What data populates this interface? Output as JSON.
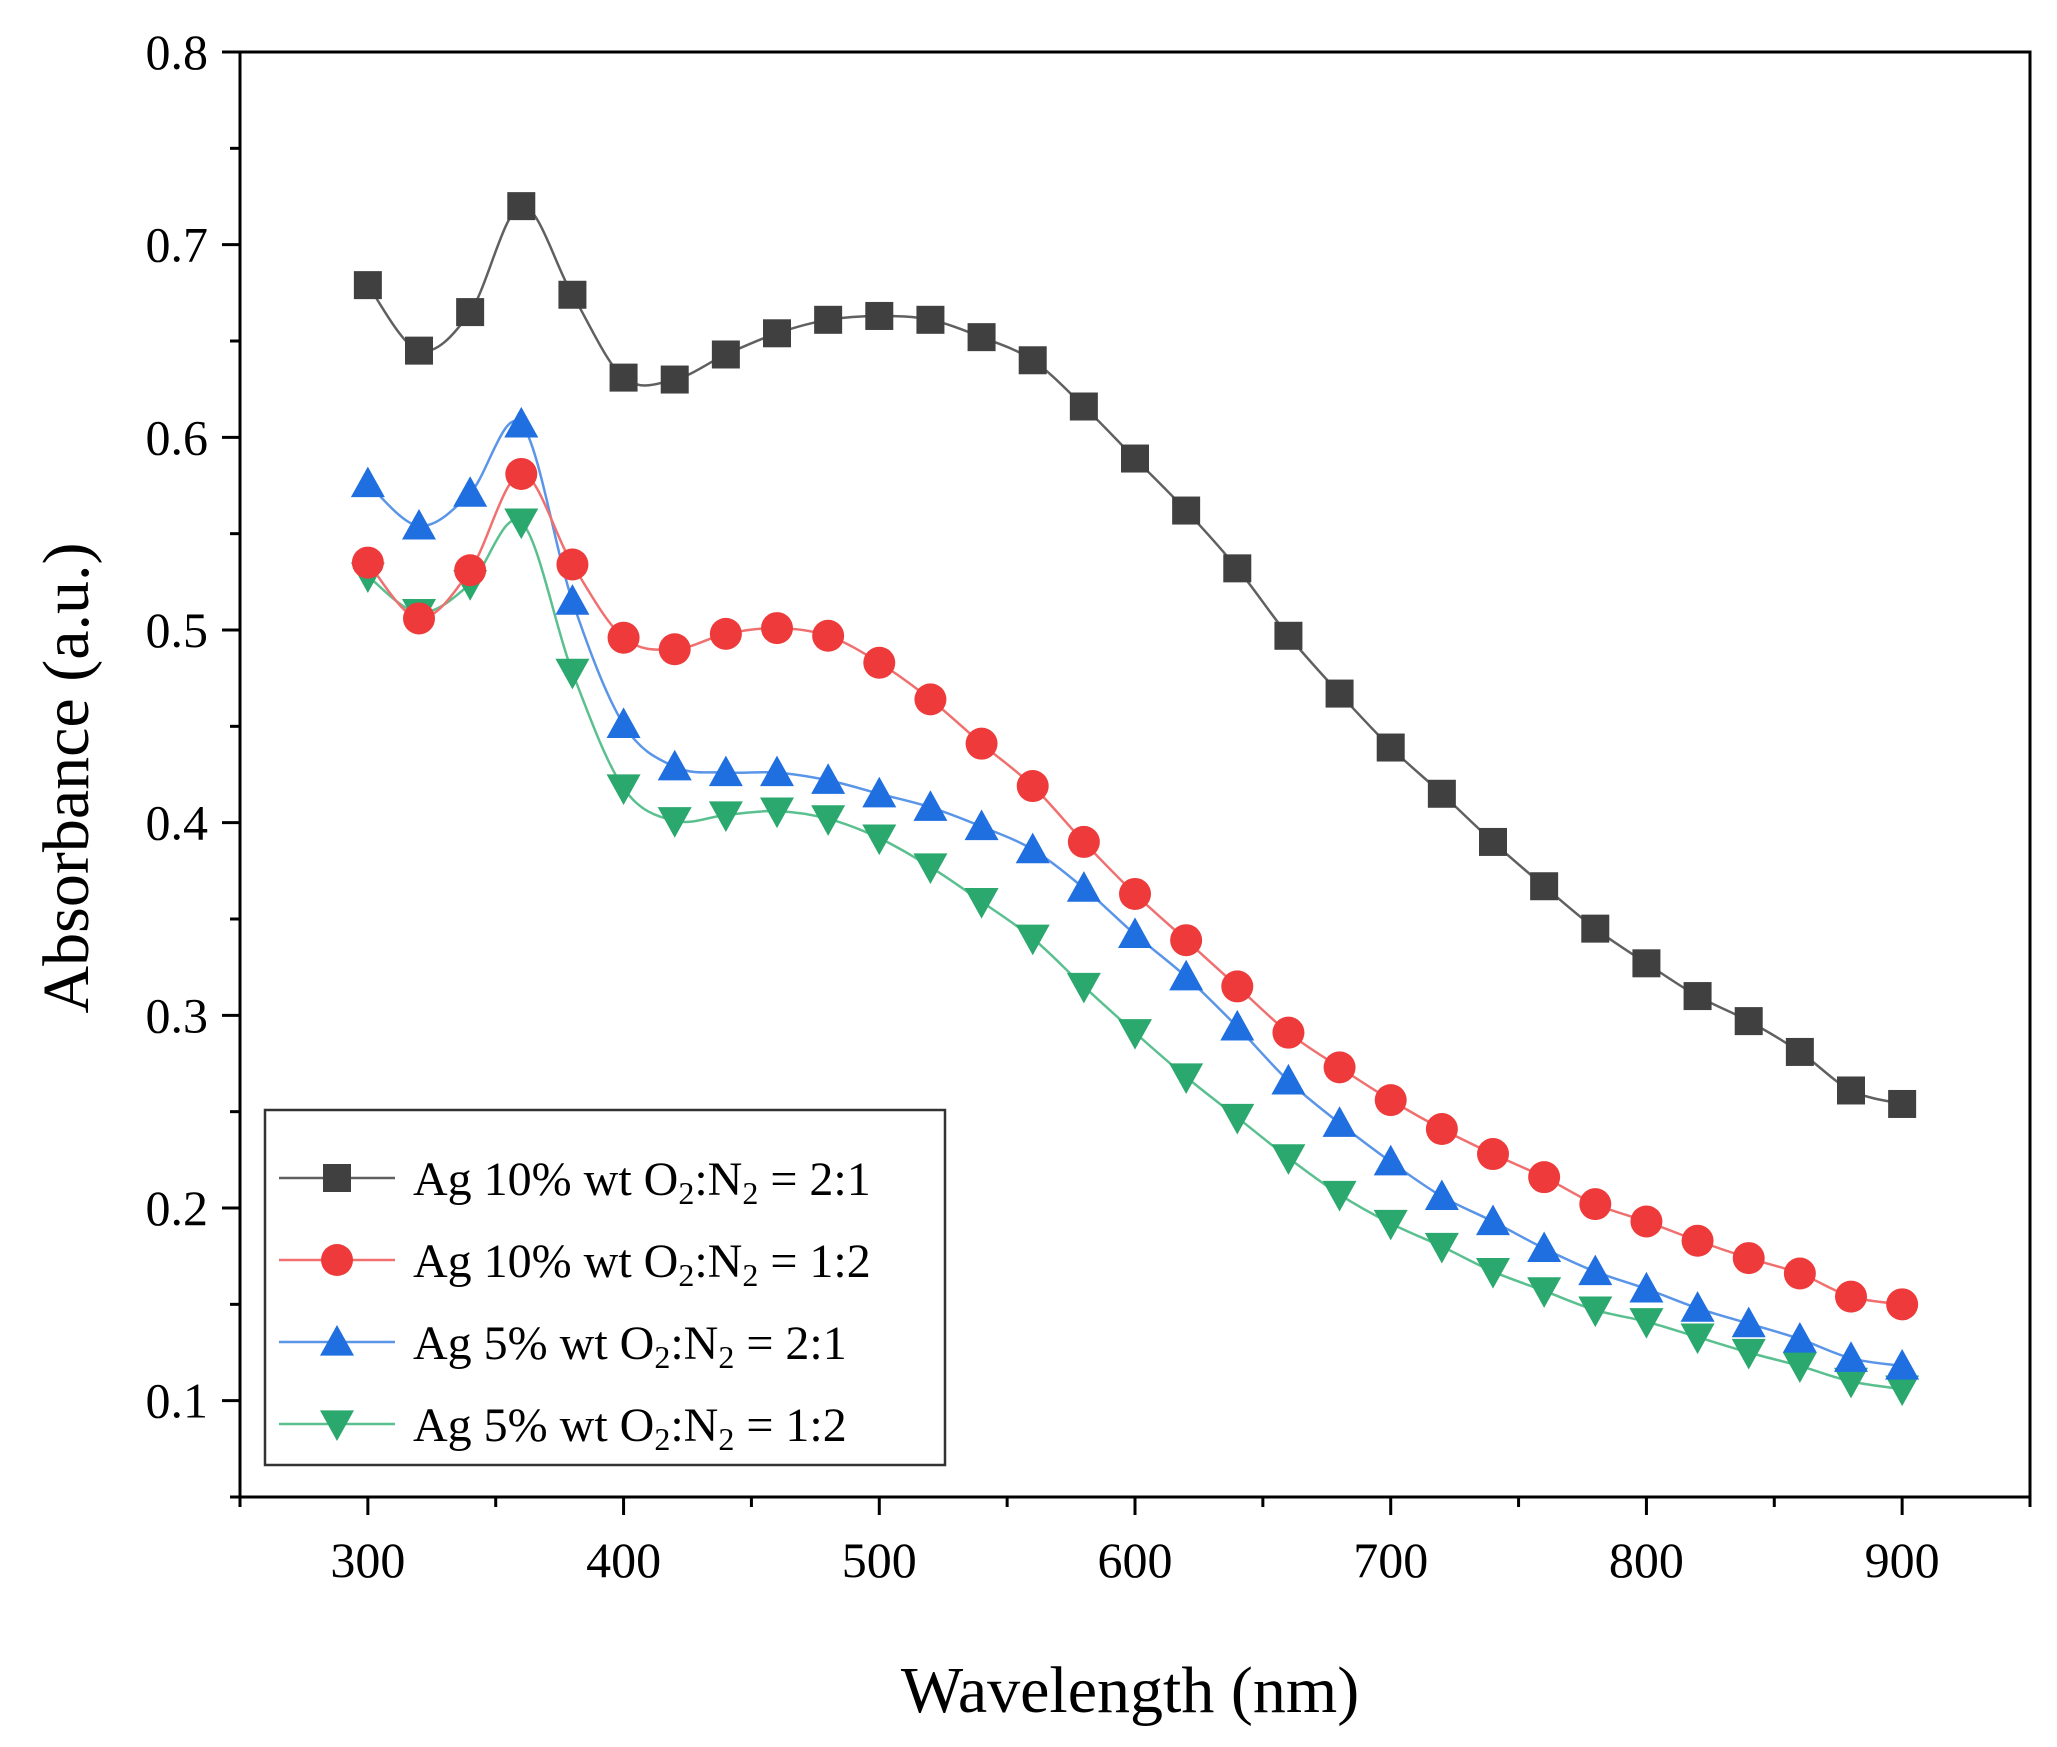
{
  "chart_data": {
    "type": "line",
    "xlabel": "Wavelength (nm)",
    "ylabel": "Absorbance (a.u.)",
    "xlim": [
      250,
      950
    ],
    "ylim": [
      0.05,
      0.8
    ],
    "x_ticks": [
      300,
      400,
      500,
      600,
      700,
      800,
      900
    ],
    "x_tick_labels": [
      "300",
      "400",
      "500",
      "600",
      "700",
      "800",
      "900"
    ],
    "y_ticks": [
      0.1,
      0.2,
      0.3,
      0.4,
      0.5,
      0.6,
      0.7,
      0.8
    ],
    "y_tick_labels": [
      "0.1",
      "0.2",
      "0.3",
      "0.4",
      "0.5",
      "0.6",
      "0.7",
      "0.8"
    ],
    "legend_position": "bottom-left",
    "x": [
      300,
      320,
      340,
      360,
      380,
      400,
      420,
      440,
      460,
      480,
      500,
      520,
      540,
      560,
      580,
      600,
      620,
      640,
      660,
      680,
      700,
      720,
      740,
      760,
      780,
      800,
      820,
      840,
      860,
      880,
      900
    ],
    "series": [
      {
        "name": "Ag 10% wt O2:N2 = 2:1",
        "legend": {
          "prefix": "Ag 10% wt O",
          "sub1": "2",
          "mid": ":N",
          "sub2": "2",
          "suffix": " = 2:1"
        },
        "marker": "square",
        "color": "#404040",
        "line_color": "#606060",
        "values": [
          0.679,
          0.645,
          0.665,
          0.72,
          0.674,
          0.631,
          0.63,
          0.643,
          0.654,
          0.661,
          0.663,
          0.661,
          0.652,
          0.64,
          0.616,
          0.589,
          0.562,
          0.532,
          0.497,
          0.467,
          0.439,
          0.415,
          0.39,
          0.367,
          0.345,
          0.327,
          0.31,
          0.297,
          0.281,
          0.261,
          0.254
        ]
      },
      {
        "name": "Ag 10% wt O2:N2 = 1:2",
        "legend": {
          "prefix": "Ag 10% wt O",
          "sub1": "2",
          "mid": ":N",
          "sub2": "2",
          "suffix": " = 1:2"
        },
        "marker": "circle",
        "color": "#ee3a3a",
        "line_color": "#f07070",
        "values": [
          0.535,
          0.506,
          0.531,
          0.581,
          0.534,
          0.496,
          0.49,
          0.498,
          0.501,
          0.497,
          0.483,
          0.464,
          0.441,
          0.419,
          0.39,
          0.363,
          0.339,
          0.315,
          0.291,
          0.273,
          0.256,
          0.241,
          0.228,
          0.216,
          0.202,
          0.193,
          0.183,
          0.174,
          0.166,
          0.154,
          0.15
        ]
      },
      {
        "name": "Ag 5% wt O2:N2 = 2:1",
        "legend": {
          "prefix": "Ag 5% wt O",
          "sub1": "2",
          "mid": ":N",
          "sub2": "2",
          "suffix": " = 2:1"
        },
        "marker": "triangle-up",
        "color": "#1f6fe0",
        "line_color": "#5a95e8",
        "values": [
          0.576,
          0.554,
          0.571,
          0.607,
          0.515,
          0.451,
          0.429,
          0.426,
          0.426,
          0.422,
          0.415,
          0.408,
          0.398,
          0.386,
          0.366,
          0.342,
          0.32,
          0.294,
          0.266,
          0.244,
          0.224,
          0.206,
          0.193,
          0.179,
          0.167,
          0.158,
          0.148,
          0.14,
          0.132,
          0.122,
          0.118
        ]
      },
      {
        "name": "Ag 5% wt O2:N2 = 1:2",
        "legend": {
          "prefix": "Ag 5% wt O",
          "sub1": "2",
          "mid": ":N",
          "sub2": "2",
          "suffix": " = 1:2"
        },
        "marker": "triangle-down",
        "color": "#2aa86e",
        "line_color": "#5bc08f",
        "values": [
          0.528,
          0.509,
          0.524,
          0.556,
          0.478,
          0.418,
          0.401,
          0.404,
          0.406,
          0.402,
          0.392,
          0.377,
          0.359,
          0.34,
          0.315,
          0.291,
          0.268,
          0.247,
          0.226,
          0.207,
          0.192,
          0.18,
          0.167,
          0.157,
          0.147,
          0.141,
          0.133,
          0.125,
          0.118,
          0.11,
          0.106
        ]
      }
    ]
  }
}
